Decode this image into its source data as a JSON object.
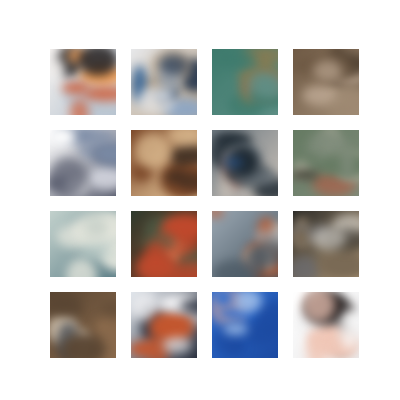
{
  "grid": {
    "rows": 4,
    "cols": 4,
    "tiles": [
      {
        "colors": [
          "#f4f1ef",
          "#d24a1d",
          "#1f1b1b",
          "#f0a05a",
          "#b8c4d0"
        ]
      },
      {
        "colors": [
          "#e7e8ea",
          "#3d6a9a",
          "#27384f",
          "#8fa7c4",
          "#b5a28a"
        ]
      },
      {
        "colors": [
          "#3d7a6c",
          "#d7cfb3",
          "#8b7a4f",
          "#c75a3a",
          "#5f8f86"
        ]
      },
      {
        "colors": [
          "#6f5a45",
          "#8a7660",
          "#b9a48f",
          "#4c3d2e",
          "#a08b74"
        ]
      },
      {
        "colors": [
          "#ffffff",
          "#2c2a35",
          "#7a8aa5",
          "#d4d6df",
          "#5a5e6f"
        ]
      },
      {
        "colors": [
          "#7d4a2b",
          "#d8b07a",
          "#b8532d",
          "#3a2a1f",
          "#e7c89c"
        ]
      },
      {
        "colors": [
          "#6f7a82",
          "#2d5d9a",
          "#b87b6a",
          "#1f2a33",
          "#c9c1b8"
        ]
      },
      {
        "colors": [
          "#657a62",
          "#b7553d",
          "#3c3a2f",
          "#c9c2b2",
          "#7e8b7a"
        ]
      },
      {
        "colors": [
          "#c2d1cc",
          "#2a4a5a",
          "#8aa3a0",
          "#e7e8de",
          "#5b7d86"
        ]
      },
      {
        "colors": [
          "#2f3c2e",
          "#c1492c",
          "#e09a6d",
          "#4d5f49",
          "#8c3a23"
        ]
      },
      {
        "colors": [
          "#9aa7b2",
          "#b8582f",
          "#6d3c2a",
          "#d9c9b6",
          "#4b5964"
        ]
      },
      {
        "colors": [
          "#2b2a27",
          "#7a6a55",
          "#e7e4dd",
          "#6a6b70",
          "#b39b7a"
        ]
      },
      {
        "colors": [
          "#5a4633",
          "#2f3a48",
          "#c4a684",
          "#e6d9c6",
          "#8a6a4c"
        ]
      },
      {
        "colors": [
          "#dfe4ea",
          "#6b6f78",
          "#c4562d",
          "#f4f4f6",
          "#2c3240"
        ]
      },
      {
        "colors": [
          "#2f6fd0",
          "#f2f4f7",
          "#9bbbe8",
          "#c9a1a0",
          "#1c4aa1"
        ]
      },
      {
        "colors": [
          "#ffffff",
          "#cf3a1f",
          "#2a2424",
          "#f0c7b7",
          "#e9e9ea"
        ]
      }
    ]
  }
}
